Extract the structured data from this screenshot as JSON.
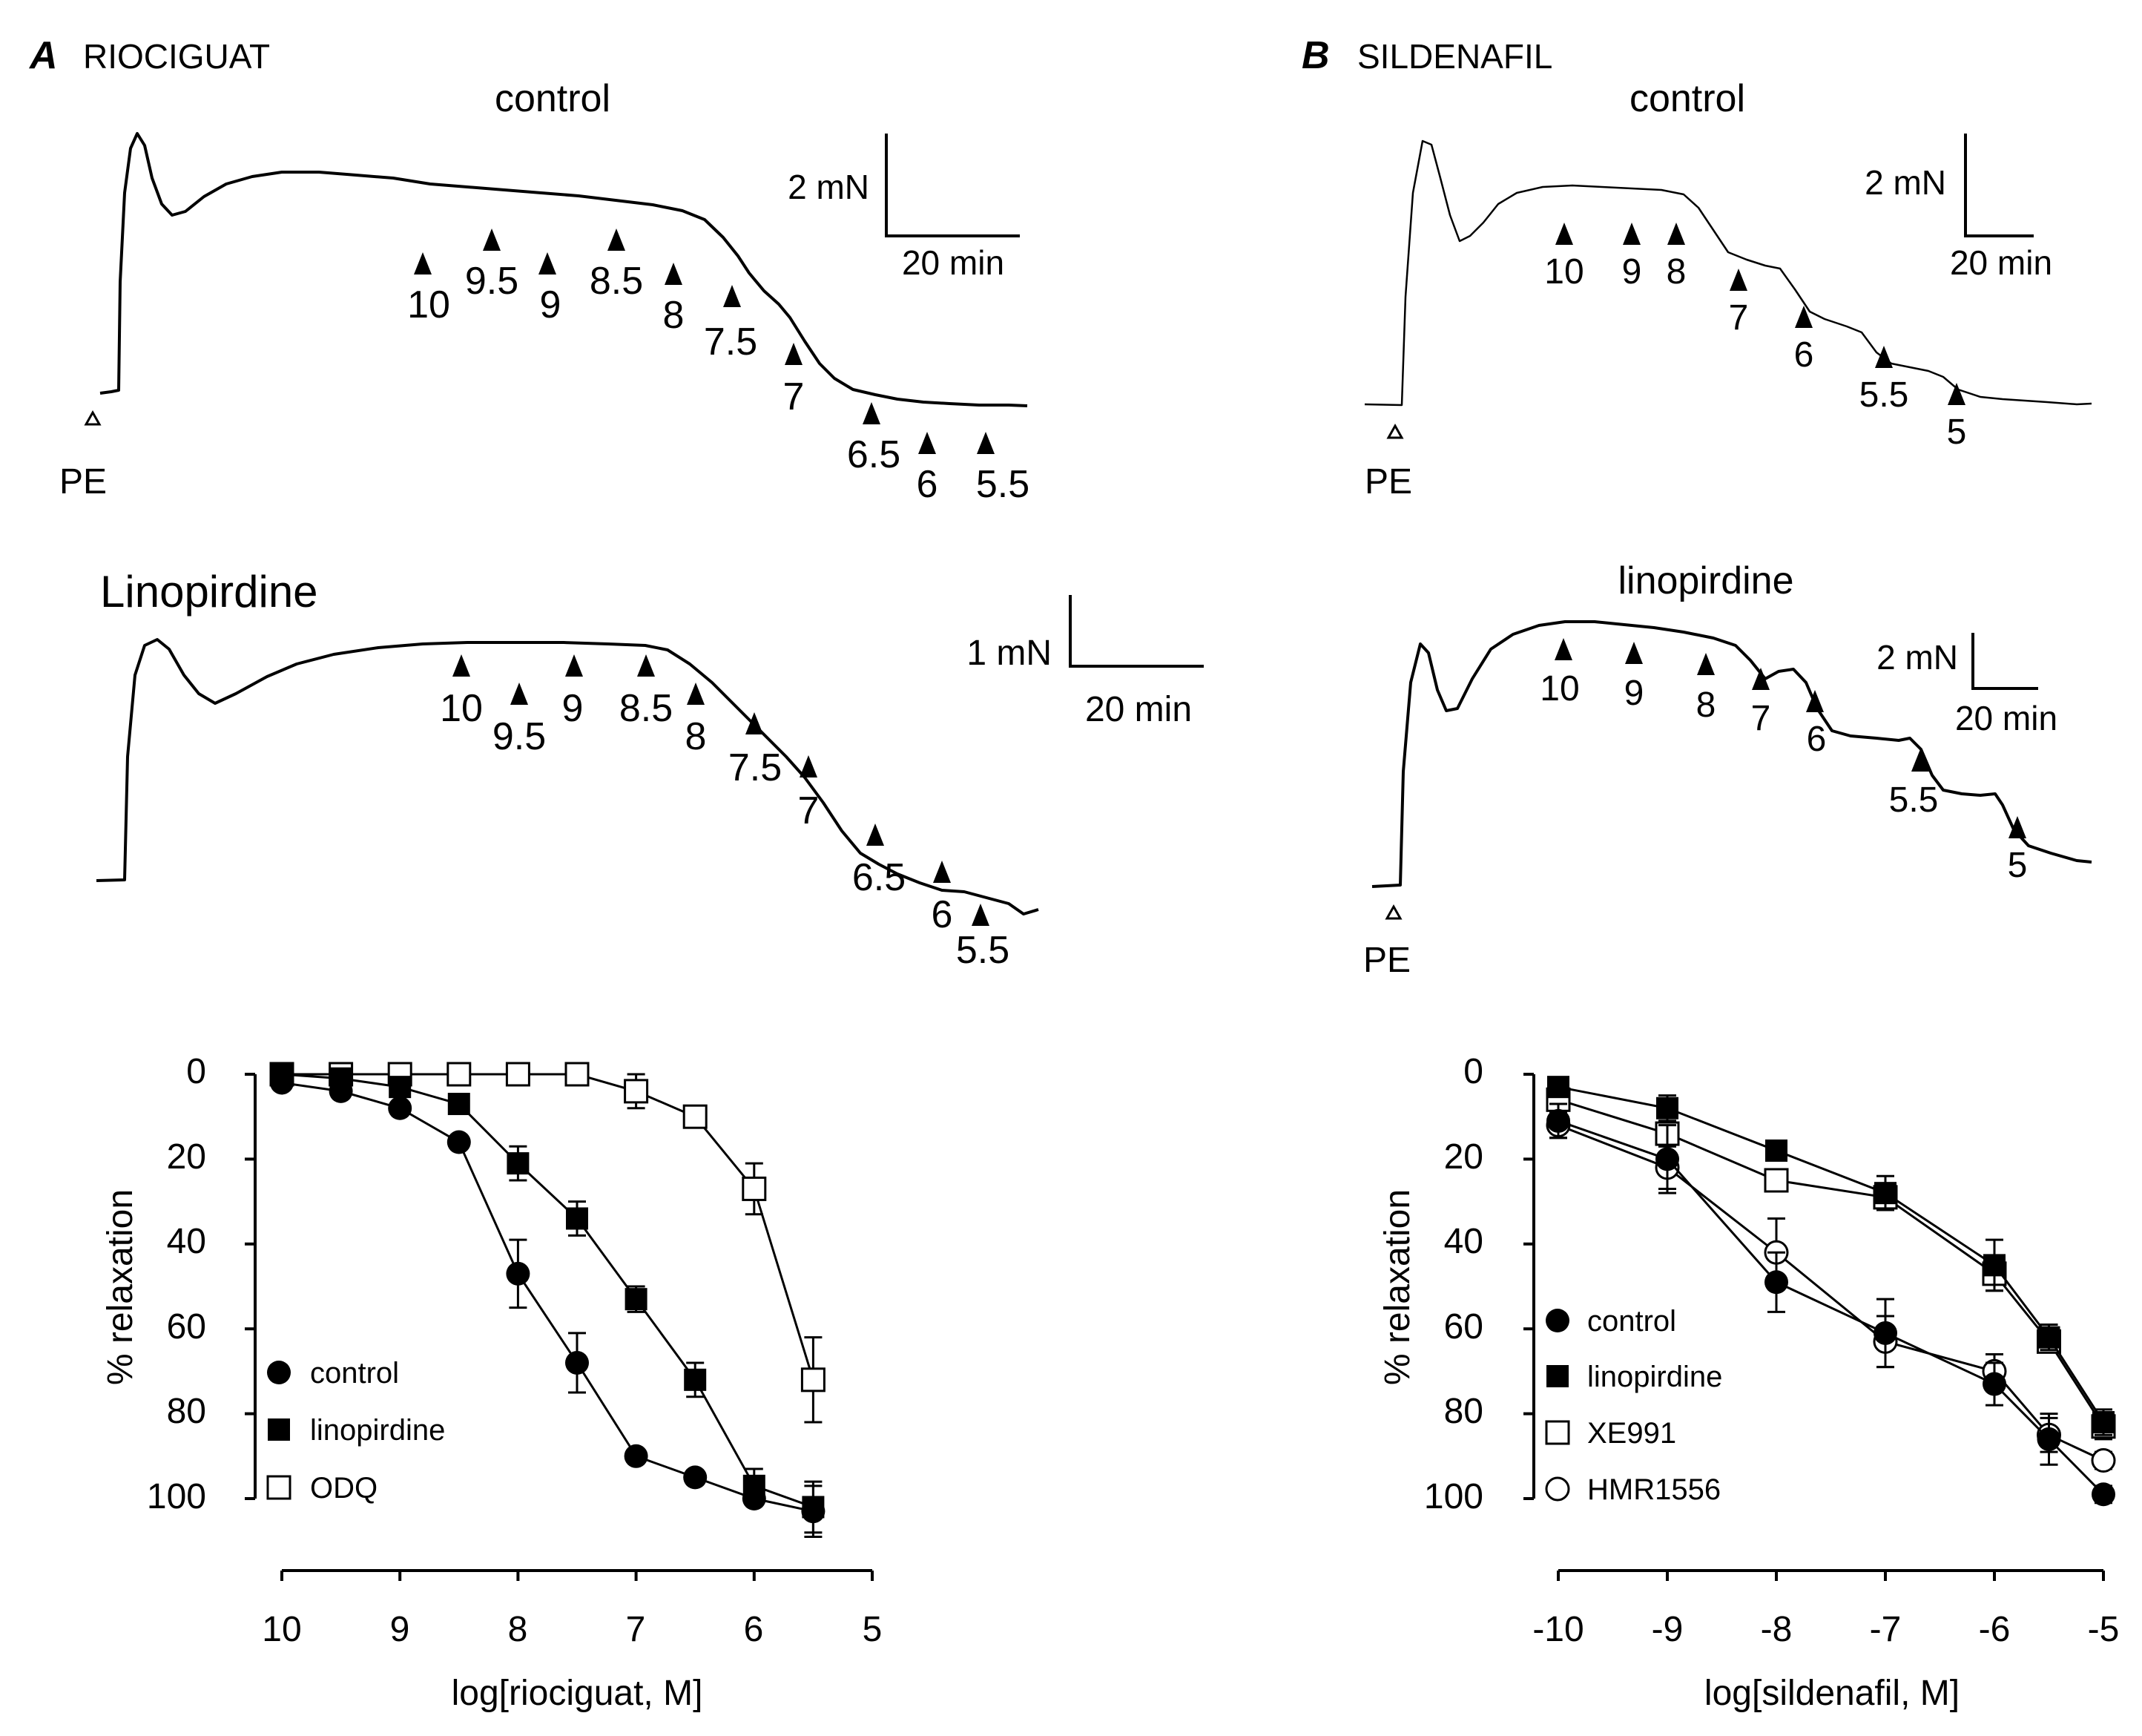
{
  "panels": {
    "A": {
      "letter": "A",
      "drug": "RIOCIGUAT",
      "control_trace": {
        "title": "control",
        "scale_force": "2 mN",
        "scale_time": "20 min",
        "pe_label": "PE",
        "marks": [
          "10",
          "9.5",
          "9",
          "8.5",
          "8",
          "7.5",
          "7",
          "6.5",
          "6",
          "5.5"
        ]
      },
      "lino_trace": {
        "title": "Linopirdine",
        "scale_force": "1 mN",
        "scale_time": "20 min",
        "marks": [
          "10",
          "9.5",
          "9",
          "8.5",
          "8",
          "7.5",
          "7",
          "6.5",
          "6",
          "5.5"
        ]
      }
    },
    "B": {
      "letter": "B",
      "drug": "SILDENAFIL",
      "control_trace": {
        "title": "control",
        "scale_force": "2 mN",
        "scale_time": "20 min",
        "pe_label": "PE",
        "marks": [
          "10",
          "9",
          "8",
          "7",
          "6",
          "5.5",
          "5"
        ]
      },
      "lino_trace": {
        "title": "linopirdine",
        "scale_force": "2 mN",
        "scale_time": "20 min",
        "pe_label": "PE",
        "marks": [
          "10",
          "9",
          "8",
          "7",
          "6",
          "5.5",
          "5"
        ]
      }
    }
  },
  "chart_data": [
    {
      "type": "line",
      "title": "",
      "xlabel": "log[riociguat,  M]",
      "ylabel": "% relaxation",
      "xlim": [
        10,
        5
      ],
      "ylim": [
        0,
        100
      ],
      "y_inverted": true,
      "xticks": [
        "10",
        "9",
        "8",
        "7",
        "6",
        "5"
      ],
      "yticks": [
        "0",
        "20",
        "40",
        "60",
        "80",
        "100"
      ],
      "legend_position": "bottom-left",
      "series": [
        {
          "name": "control",
          "marker": "filled-circle",
          "x": [
            10,
            9.5,
            9,
            8.5,
            8,
            7.5,
            7,
            6.5,
            6,
            5.5
          ],
          "y": [
            2,
            4,
            8,
            16,
            47,
            68,
            90,
            95,
            100,
            103
          ],
          "err": [
            0,
            0,
            0,
            0,
            8,
            7,
            0,
            0,
            0,
            6
          ]
        },
        {
          "name": "linopirdine",
          "marker": "filled-square",
          "x": [
            10,
            9.5,
            9,
            8.5,
            8,
            7.5,
            7,
            6.5,
            6,
            5.5
          ],
          "y": [
            0,
            1,
            3,
            7,
            21,
            34,
            53,
            72,
            97,
            102
          ],
          "err": [
            0,
            0,
            0,
            0,
            4,
            4,
            3,
            4,
            4,
            6
          ]
        },
        {
          "name": "ODQ",
          "marker": "open-square",
          "x": [
            10,
            9.5,
            9,
            8.5,
            8,
            7.5,
            7,
            6.5,
            6,
            5.5
          ],
          "y": [
            0,
            0,
            0,
            0,
            0,
            0,
            4,
            10,
            27,
            72
          ],
          "err": [
            0,
            0,
            0,
            0,
            0,
            0,
            4,
            0,
            6,
            10
          ]
        }
      ]
    },
    {
      "type": "line",
      "title": "",
      "xlabel": "log[sildenafil,  M]",
      "ylabel": "% relaxation",
      "xlim": [
        -10,
        -5
      ],
      "ylim": [
        0,
        100
      ],
      "y_inverted": true,
      "xticks": [
        "-10",
        "-9",
        "-8",
        "-7",
        "-6",
        "-5"
      ],
      "yticks": [
        "0",
        "20",
        "40",
        "60",
        "80",
        "100"
      ],
      "legend_position": "bottom-left",
      "series": [
        {
          "name": "control",
          "marker": "filled-circle",
          "x": [
            -10,
            -9,
            -8,
            -7,
            -6,
            -5.5,
            -5
          ],
          "y": [
            11,
            20,
            49,
            61,
            73,
            86,
            99
          ],
          "err": [
            4,
            8,
            7,
            8,
            5,
            6,
            2
          ]
        },
        {
          "name": "linopirdine",
          "marker": "filled-square",
          "x": [
            -10,
            -9,
            -8,
            -7,
            -6,
            -5.5,
            -5
          ],
          "y": [
            3,
            8,
            18,
            28,
            45,
            62,
            82
          ],
          "err": [
            2,
            3,
            2,
            4,
            6,
            3,
            3
          ]
        },
        {
          "name": "XE991",
          "marker": "open-square",
          "x": [
            -10,
            -9,
            -8,
            -7,
            -6,
            -5.5,
            -5
          ],
          "y": [
            6,
            14,
            25,
            29,
            47,
            63,
            83
          ],
          "err": [
            2,
            3,
            2,
            3,
            4,
            2,
            3
          ]
        },
        {
          "name": "HMR1556",
          "marker": "open-circle",
          "x": [
            -10,
            -9,
            -8,
            -7,
            -6,
            -5.5,
            -5
          ],
          "y": [
            12,
            22,
            42,
            63,
            70,
            85,
            91
          ],
          "err": [
            3,
            5,
            8,
            6,
            4,
            4,
            2
          ]
        }
      ]
    }
  ]
}
